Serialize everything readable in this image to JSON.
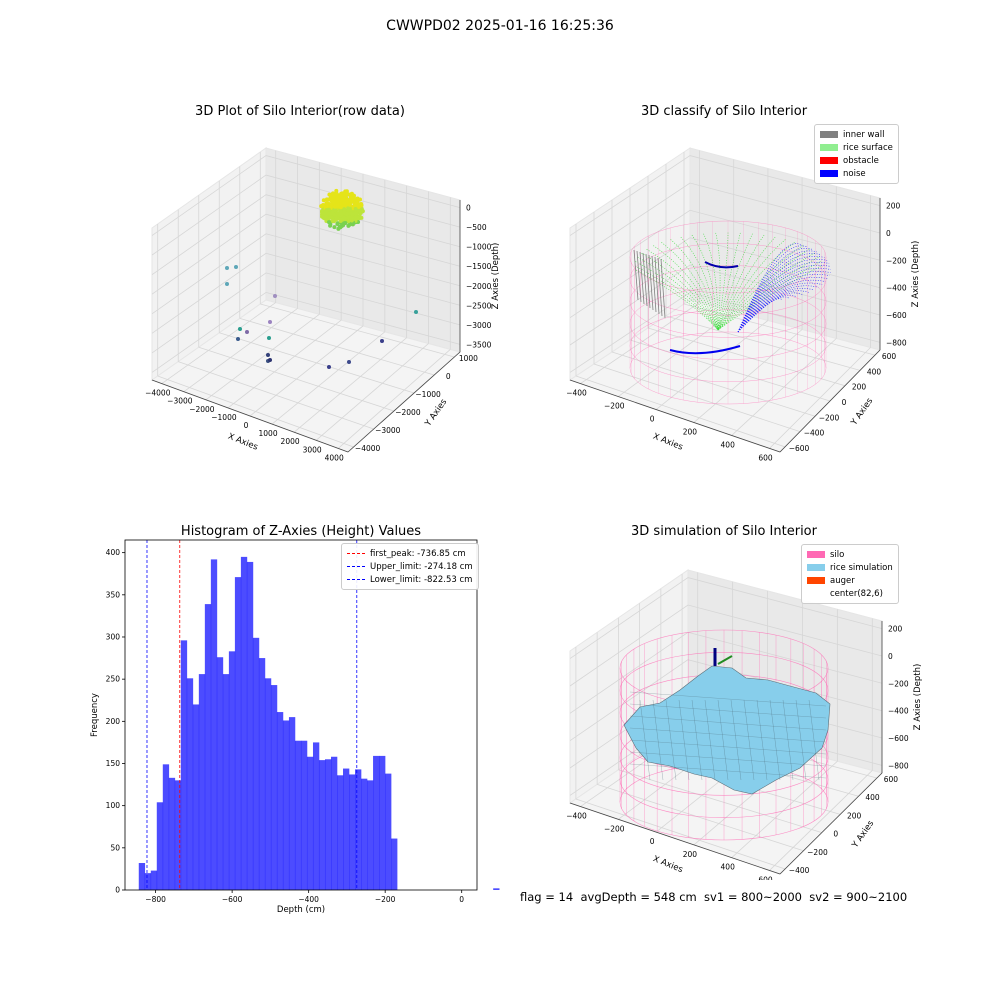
{
  "suptitle": "CWWPD02 2025-01-16 16:25:36",
  "panels": {
    "raw": {
      "title": "3D Plot of Silo Interior(row data)",
      "xlabel": "X Axies",
      "ylabel": "Y Axies",
      "zlabel": "Z Axies (Depth)",
      "xticks": [
        "−4000",
        "−3000",
        "−2000",
        "−1000",
        "0",
        "1000",
        "2000",
        "3000",
        "4000"
      ],
      "yticks": [
        "1000",
        "0",
        "−1000",
        "−2000",
        "−3000",
        "−4000"
      ],
      "zticks": [
        "0",
        "−500",
        "−1000",
        "−1500",
        "−2000",
        "−2500",
        "−3000",
        "−3500"
      ]
    },
    "classify": {
      "title": "3D classify of Silo Interior",
      "xlabel": "X Axies",
      "ylabel": "Y Axies",
      "zlabel": "Z Axies (Depth)",
      "xticks": [
        "−400",
        "−200",
        "0",
        "200",
        "400",
        "600"
      ],
      "yticks": [
        "600",
        "400",
        "200",
        "0",
        "−200",
        "−400",
        "−600"
      ],
      "zticks": [
        "200",
        "0",
        "−200",
        "−400",
        "−600",
        "−800"
      ],
      "legend": [
        {
          "label": "inner wall",
          "color": "#808080"
        },
        {
          "label": "rice surface",
          "color": "#90ee90"
        },
        {
          "label": "obstacle",
          "color": "#ff0000"
        },
        {
          "label": "noise",
          "color": "#0000ff"
        }
      ]
    },
    "simulation": {
      "title": "3D simulation of Silo Interior",
      "xlabel": "X Axies",
      "ylabel": "Y Axies",
      "zlabel": "Z Axies (Depth)",
      "xticks": [
        "−400",
        "−200",
        "0",
        "200",
        "400",
        "600"
      ],
      "yticks": [
        "600",
        "400",
        "200",
        "0",
        "−200",
        "−400"
      ],
      "zticks": [
        "200",
        "0",
        "−200",
        "−400",
        "−600",
        "−800"
      ],
      "legend": [
        {
          "label": "silo",
          "color": "#ff69b4"
        },
        {
          "label": "rice simulation",
          "color": "#87ceeb"
        },
        {
          "label": "auger",
          "color": "#ff4500"
        },
        {
          "label": "center(82,6)",
          "color": "#ffffff"
        }
      ]
    }
  },
  "footer": "flag = 14  avgDepth = 548 cm  sv1 = 800~2000  sv2 = 900~2100",
  "chart_data": [
    {
      "type": "bar",
      "title": "Histogram of Z-Axies (Height) Values",
      "xlabel": "Depth (cm)",
      "ylabel": "Frequency",
      "xlim": [
        -880,
        40
      ],
      "ylim": [
        0,
        415
      ],
      "xticks": [
        -800,
        -600,
        -400,
        -200,
        0
      ],
      "yticks": [
        0,
        50,
        100,
        150,
        200,
        250,
        300,
        350,
        400
      ],
      "bin_width": 15.7,
      "bin_start": -844,
      "values": [
        32,
        20,
        23,
        104,
        149,
        133,
        130,
        296,
        251,
        220,
        256,
        339,
        392,
        276,
        256,
        283,
        371,
        395,
        389,
        299,
        275,
        251,
        243,
        211,
        201,
        205,
        177,
        177,
        158,
        175,
        154,
        155,
        158,
        136,
        144,
        137,
        143,
        132,
        130,
        159,
        159,
        138,
        61,
        0,
        0,
        0,
        0,
        0,
        0,
        0,
        0,
        0,
        0,
        0,
        0,
        0,
        0,
        0,
        0,
        2
      ],
      "color": "#0000ff",
      "vlines": [
        {
          "label": "first_peak: -736.85 cm",
          "x": -736.85,
          "color": "#ff0000"
        },
        {
          "label": "Upper_limit: -274.18 cm",
          "x": -274.18,
          "color": "#0000ff"
        },
        {
          "label": "Lower_limit: -822.53 cm",
          "x": -822.53,
          "color": "#0000ff"
        }
      ],
      "legend_position": "top-right"
    }
  ]
}
